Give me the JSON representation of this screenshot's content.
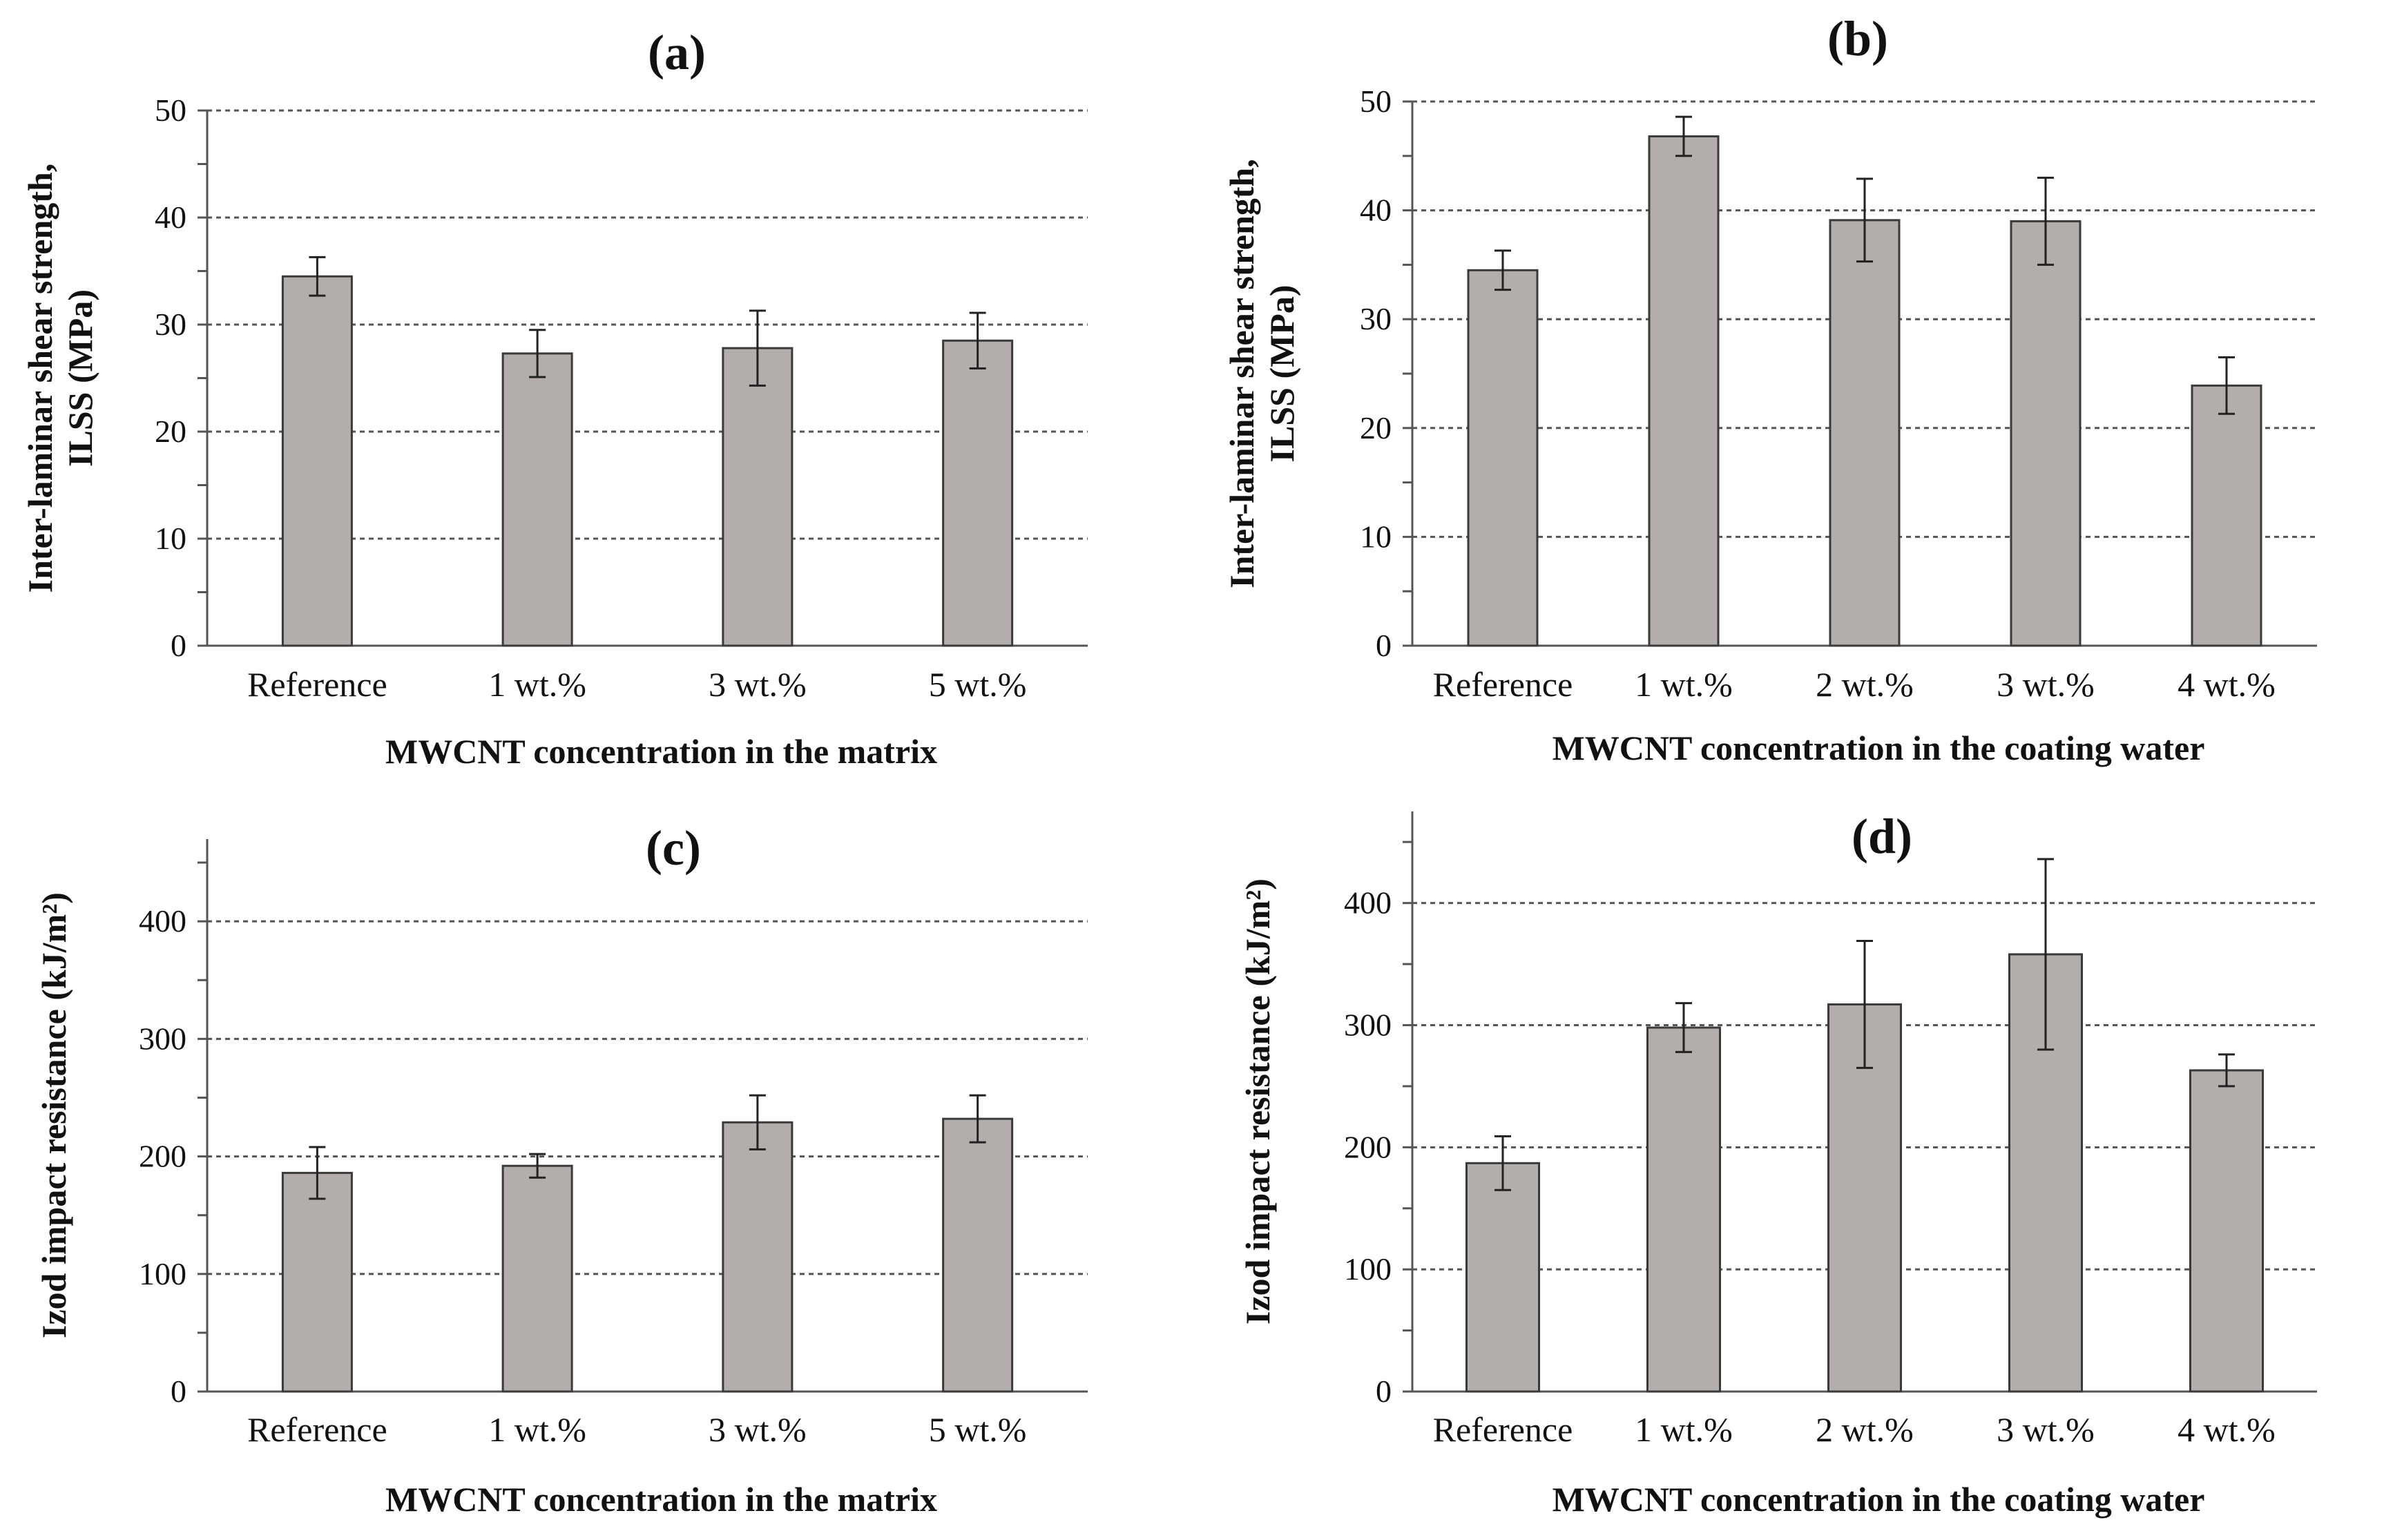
{
  "colors": {
    "bar_fill": "#b3aeab",
    "bar_stroke": "#3a3a3a",
    "axis": "#555555",
    "grid": "#555555",
    "text": "#111111"
  },
  "chart_data": [
    {
      "id": "a",
      "type": "bar",
      "panel_label": "(a)",
      "categories": [
        "Reference",
        "1 wt.%",
        "3 wt.%",
        "5 wt.%"
      ],
      "values": [
        34.5,
        27.3,
        27.8,
        28.5
      ],
      "errors": [
        1.8,
        2.2,
        3.5,
        2.6
      ],
      "ylim": [
        0,
        50
      ],
      "ticks": [
        0,
        10,
        20,
        30,
        40,
        50
      ],
      "grid": true,
      "ylabel_lines": [
        "Inter-laminar shear strength,",
        "ILSS (MPa)"
      ],
      "xlabel": "MWCNT concentration in the matrix"
    },
    {
      "id": "b",
      "type": "bar",
      "panel_label": "(b)",
      "categories": [
        "Reference",
        "1 wt.%",
        "2 wt.%",
        "3 wt.%",
        "4 wt.%"
      ],
      "values": [
        34.5,
        46.8,
        39.1,
        39.0,
        23.9
      ],
      "errors": [
        1.8,
        1.8,
        3.8,
        4.0,
        2.6
      ],
      "ylim": [
        0,
        50
      ],
      "ticks": [
        0,
        10,
        20,
        30,
        40,
        50
      ],
      "grid": true,
      "ylabel_lines": [
        "Inter-laminar shear strength,",
        "ILSS (MPa)"
      ],
      "xlabel": "MWCNT concentration in the coating water"
    },
    {
      "id": "c",
      "type": "bar",
      "panel_label": "(c)",
      "categories": [
        "Reference",
        "1 wt.%",
        "3 wt.%",
        "5 wt.%"
      ],
      "values": [
        186,
        192,
        229,
        232
      ],
      "errors": [
        22,
        10,
        23,
        20
      ],
      "ylim": [
        0,
        470
      ],
      "ticks": [
        0,
        100,
        200,
        300,
        400
      ],
      "grid": true,
      "ylabel_lines": [
        "Izod impact resistance (kJ/m²)"
      ],
      "xlabel": "MWCNT concentration in the matrix"
    },
    {
      "id": "d",
      "type": "bar",
      "panel_label": "(d)",
      "categories": [
        "Reference",
        "1 wt.%",
        "2 wt.%",
        "3 wt.%",
        "4 wt.%"
      ],
      "values": [
        187,
        298,
        317,
        358,
        263
      ],
      "errors": [
        22,
        20,
        52,
        78,
        13
      ],
      "ylim": [
        0,
        475
      ],
      "ticks": [
        0,
        100,
        200,
        300,
        400
      ],
      "grid": true,
      "ylabel_lines": [
        "Izod impact resistance (kJ/m²)"
      ],
      "xlabel": "MWCNT concentration in the coating water"
    }
  ]
}
